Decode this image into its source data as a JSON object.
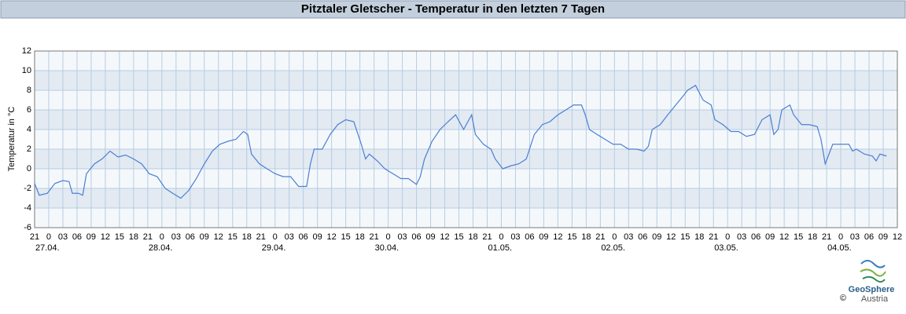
{
  "chart_data": {
    "type": "line",
    "title": "Pitztaler Gletscher - Temperatur in den letzten 7 Tagen",
    "y_label": "Temperatur in °C",
    "x": [
      0,
      1,
      2.7,
      4.3,
      6,
      7.3,
      8,
      9.3,
      10.2,
      11,
      12.7,
      14.3,
      16,
      17.7,
      19.3,
      21,
      22.7,
      24.3,
      26,
      27.7,
      29.3,
      31,
      32.7,
      34.3,
      36,
      37.7,
      39.3,
      41,
      42.7,
      44.3,
      45.2,
      46,
      47.7,
      49.3,
      51,
      52.7,
      54.3,
      56,
      57.7,
      58.5,
      59.3,
      61,
      62.7,
      64.3,
      66,
      67.7,
      69.3,
      70.2,
      71,
      72.7,
      74.3,
      76,
      77.7,
      79.3,
      81,
      81.8,
      82.7,
      84.3,
      86,
      87.7,
      89.3,
      91,
      92.7,
      93.5,
      95.2,
      96.8,
      97.7,
      99.3,
      101,
      102.7,
      104.3,
      106,
      107.7,
      109.3,
      111,
      112.7,
      114.3,
      116,
      116.8,
      117.7,
      119.3,
      121,
      122.7,
      124.3,
      126,
      127.7,
      129.3,
      130.2,
      131,
      132.7,
      134.3,
      136,
      137.7,
      138.5,
      140.2,
      141.8,
      143.5,
      144.3,
      146,
      147.7,
      149.3,
      151,
      152.7,
      154.3,
      156,
      156.8,
      157.7,
      158.5,
      160.2,
      161,
      162.7,
      164.3,
      166,
      166.8,
      167.7,
      168.5,
      169.3,
      171,
      172.7,
      173.5,
      174.3,
      176,
      177.7,
      178.5,
      179.3,
      180.7
    ],
    "series": [
      {
        "color": "#4a7fd4",
        "values": [
          -1.5,
          -2.7,
          -2.5,
          -1.5,
          -1.2,
          -1.3,
          -2.5,
          -2.5,
          -2.7,
          -0.5,
          0.5,
          1.0,
          1.8,
          1.2,
          1.4,
          1.0,
          0.5,
          -0.5,
          -0.8,
          -2.0,
          -2.5,
          -3.0,
          -2.2,
          -1.0,
          0.5,
          1.8,
          2.5,
          2.8,
          3.0,
          3.8,
          3.5,
          1.5,
          0.5,
          0.0,
          -0.5,
          -0.8,
          -0.8,
          -1.8,
          -1.8,
          0.5,
          2.0,
          2.0,
          3.5,
          4.5,
          5.0,
          4.8,
          2.5,
          1.0,
          1.5,
          0.8,
          0.0,
          -0.5,
          -1.0,
          -1.0,
          -1.6,
          -0.8,
          1.0,
          2.8,
          4.0,
          4.8,
          5.5,
          4.0,
          5.5,
          3.5,
          2.5,
          2.0,
          1.0,
          0.0,
          0.3,
          0.5,
          1.0,
          3.5,
          4.5,
          4.8,
          5.5,
          6.0,
          6.5,
          6.5,
          5.5,
          4.0,
          3.5,
          3.0,
          2.5,
          2.5,
          2.0,
          2.0,
          1.8,
          2.3,
          4.0,
          4.5,
          5.5,
          6.5,
          7.5,
          8.0,
          8.5,
          7.0,
          6.5,
          5.0,
          4.5,
          3.8,
          3.8,
          3.3,
          3.5,
          5.0,
          5.5,
          3.5,
          4.0,
          6.0,
          6.5,
          5.5,
          4.5,
          4.5,
          4.3,
          3.0,
          0.5,
          1.5,
          2.5,
          2.5,
          2.5,
          1.8,
          2.0,
          1.5,
          1.3,
          0.8,
          1.5,
          1.3
        ]
      }
    ],
    "xlim": [
      0,
      183
    ],
    "xticks": [
      {
        "value": 0,
        "label": "21"
      },
      {
        "value": 3,
        "label": "0"
      },
      {
        "value": 6,
        "label": "03"
      },
      {
        "value": 9,
        "label": "06"
      },
      {
        "value": 12,
        "label": "09"
      },
      {
        "value": 15,
        "label": "12"
      },
      {
        "value": 18,
        "label": "15"
      },
      {
        "value": 21,
        "label": "18"
      },
      {
        "value": 24,
        "label": "21"
      },
      {
        "value": 27,
        "label": "0"
      },
      {
        "value": 30,
        "label": "03"
      },
      {
        "value": 33,
        "label": "06"
      },
      {
        "value": 36,
        "label": "09"
      },
      {
        "value": 39,
        "label": "12"
      },
      {
        "value": 42,
        "label": "15"
      },
      {
        "value": 45,
        "label": "18"
      },
      {
        "value": 48,
        "label": "21"
      },
      {
        "value": 51,
        "label": "0"
      },
      {
        "value": 54,
        "label": "03"
      },
      {
        "value": 57,
        "label": "06"
      },
      {
        "value": 60,
        "label": "09"
      },
      {
        "value": 63,
        "label": "12"
      },
      {
        "value": 66,
        "label": "15"
      },
      {
        "value": 69,
        "label": "18"
      },
      {
        "value": 72,
        "label": "21"
      },
      {
        "value": 75,
        "label": "0"
      },
      {
        "value": 78,
        "label": "03"
      },
      {
        "value": 81,
        "label": "06"
      },
      {
        "value": 84,
        "label": "09"
      },
      {
        "value": 87,
        "label": "12"
      },
      {
        "value": 90,
        "label": "15"
      },
      {
        "value": 93,
        "label": "18"
      },
      {
        "value": 96,
        "label": "21"
      },
      {
        "value": 99,
        "label": "0"
      },
      {
        "value": 102,
        "label": "03"
      },
      {
        "value": 105,
        "label": "06"
      },
      {
        "value": 108,
        "label": "09"
      },
      {
        "value": 111,
        "label": "12"
      },
      {
        "value": 114,
        "label": "15"
      },
      {
        "value": 117,
        "label": "18"
      },
      {
        "value": 120,
        "label": "21"
      },
      {
        "value": 123,
        "label": "0"
      },
      {
        "value": 126,
        "label": "03"
      },
      {
        "value": 129,
        "label": "06"
      },
      {
        "value": 132,
        "label": "09"
      },
      {
        "value": 135,
        "label": "12"
      },
      {
        "value": 138,
        "label": "15"
      },
      {
        "value": 141,
        "label": "18"
      },
      {
        "value": 144,
        "label": "21"
      },
      {
        "value": 147,
        "label": "0"
      },
      {
        "value": 150,
        "label": "03"
      },
      {
        "value": 153,
        "label": "06"
      },
      {
        "value": 156,
        "label": "09"
      },
      {
        "value": 159,
        "label": "12"
      },
      {
        "value": 162,
        "label": "15"
      },
      {
        "value": 165,
        "label": "18"
      },
      {
        "value": 168,
        "label": "21"
      },
      {
        "value": 171,
        "label": "0"
      },
      {
        "value": 174,
        "label": "03"
      },
      {
        "value": 177,
        "label": "06"
      },
      {
        "value": 180,
        "label": "09"
      },
      {
        "value": 183,
        "label": "12"
      }
    ],
    "date_labels": [
      {
        "value": 3,
        "label": "27.04."
      },
      {
        "value": 27,
        "label": "28.04."
      },
      {
        "value": 51,
        "label": "29.04."
      },
      {
        "value": 75,
        "label": "30.04."
      },
      {
        "value": 99,
        "label": "01.05."
      },
      {
        "value": 123,
        "label": "02.05."
      },
      {
        "value": 147,
        "label": "03.05."
      },
      {
        "value": 171,
        "label": "04.05."
      }
    ],
    "ylim": [
      -6,
      12
    ],
    "yticks": [
      -6,
      -4,
      -2,
      0,
      2,
      4,
      6,
      8,
      10,
      12
    ],
    "grid": true,
    "logo": {
      "name": "GeoSphere",
      "sub": "Austria",
      "copyright": "©"
    }
  }
}
